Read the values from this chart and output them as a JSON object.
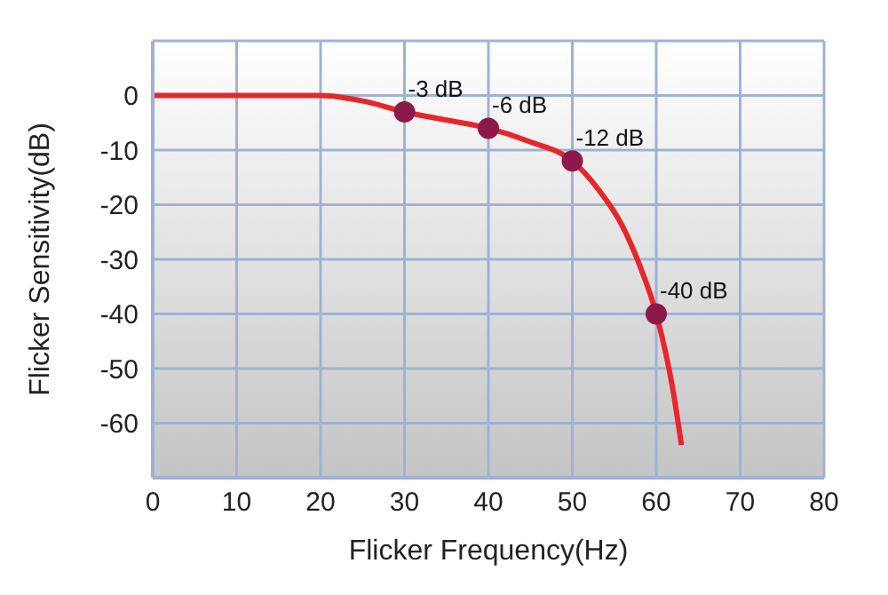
{
  "chart_data": {
    "type": "line",
    "xlabel": "Flicker Frequency(Hz)",
    "ylabel": "Flicker Sensitivity(dB)",
    "xlim": [
      0,
      80
    ],
    "xticks": [
      0,
      10,
      20,
      30,
      40,
      50,
      60,
      70,
      80
    ],
    "ylim": [
      -70,
      10
    ],
    "yticks": [
      {
        "value": -70,
        "label": null
      },
      -60,
      -50,
      -40,
      -30,
      -20,
      -10,
      0,
      {
        "value": 10,
        "label": null
      }
    ],
    "grid": true,
    "legend": false,
    "series": [
      {
        "type": "line",
        "color": "#e8262a",
        "x": [
          0,
          20,
          25,
          30,
          35,
          40,
          45,
          50,
          53,
          56,
          58,
          60,
          62,
          63
        ],
        "values": [
          0,
          0,
          -1,
          -3,
          -4.5,
          -6,
          -8.5,
          -12,
          -17,
          -24,
          -31,
          -40,
          -54,
          -64
        ]
      },
      {
        "type": "scatter",
        "color": "#8b1a4a",
        "x": [
          30,
          40,
          50,
          60
        ],
        "values": [
          -3,
          -6,
          -12,
          -40
        ],
        "value_labels": [
          "-3 dB",
          "-6 dB",
          "-12 dB",
          "-40 dB"
        ]
      }
    ]
  }
}
